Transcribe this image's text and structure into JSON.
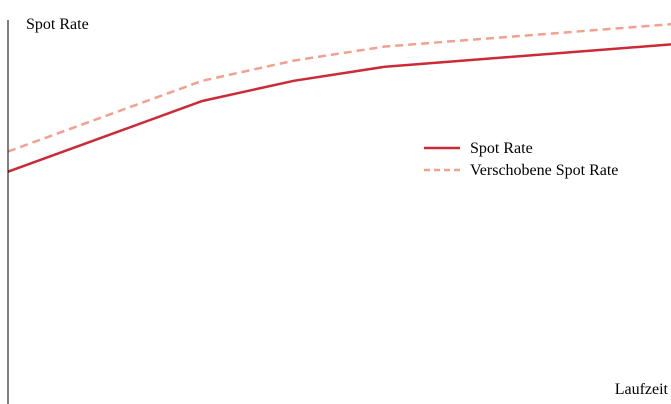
{
  "chart_data": {
    "type": "line",
    "ylabel": "Spot Rate",
    "xlabel": "Laufzeit",
    "grid": false,
    "axis_ticks": false,
    "legend_position": "right",
    "xlim": [
      0,
      5.8
    ],
    "ylim": [
      0,
      1
    ],
    "x": [
      0,
      1.7,
      2.5,
      3.3,
      5.8
    ],
    "series": [
      {
        "name": "Spot Rate",
        "color": "#cc2a36",
        "dash": "solid",
        "values": [
          0.575,
          0.75,
          0.8,
          0.835,
          0.89
        ]
      },
      {
        "name": "Verschobene Spot Rate",
        "color": "#f2a090",
        "dash": "dashed",
        "values": [
          0.625,
          0.8,
          0.85,
          0.885,
          0.94
        ]
      }
    ]
  }
}
